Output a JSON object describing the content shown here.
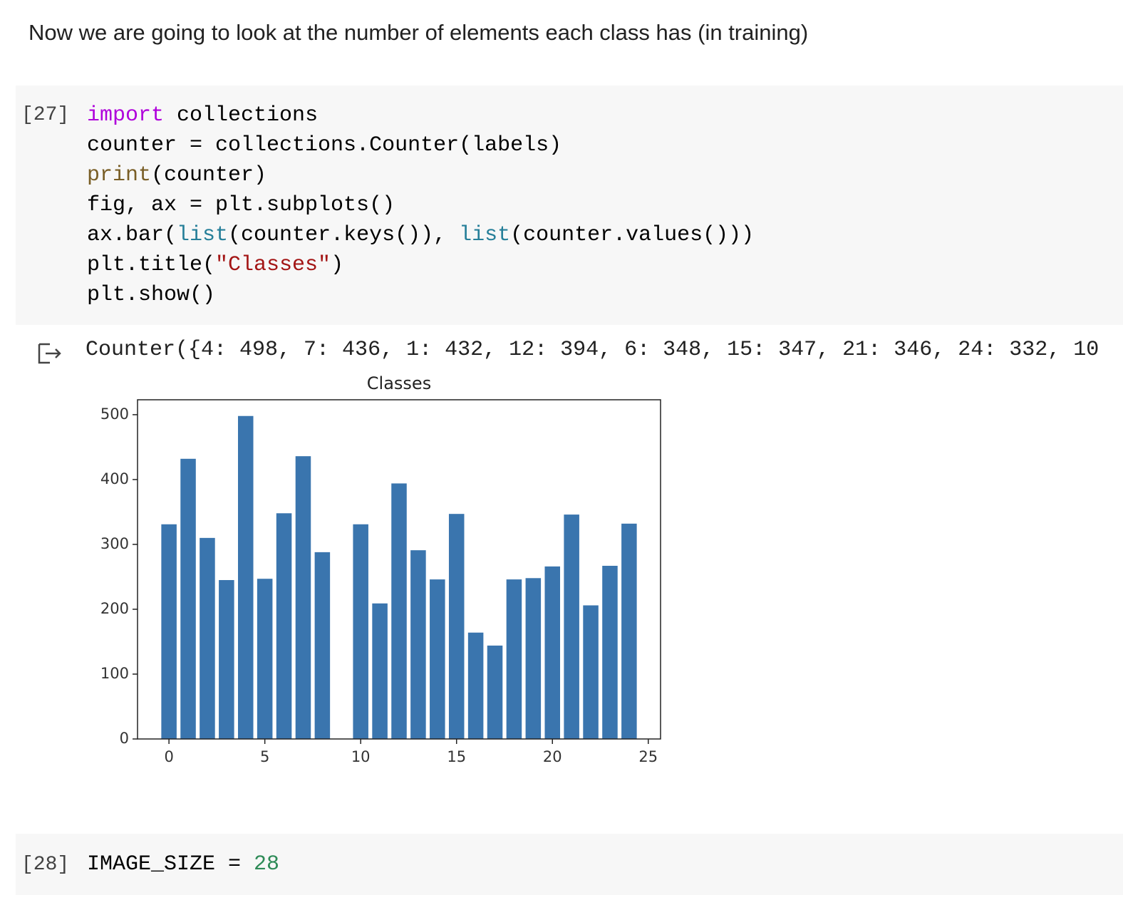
{
  "markdown": {
    "text": "Now we are going to look at the number of elements each class has (in training)"
  },
  "cells": [
    {
      "prompt": "[27]",
      "code": [
        [
          {
            "text": "import",
            "style": "keyword"
          },
          {
            "text": " collections"
          }
        ],
        [
          {
            "text": "counter = collections.Counter(labels)"
          }
        ],
        [
          {
            "text": "print",
            "style": "function"
          },
          {
            "text": "(counter)"
          }
        ],
        [
          {
            "text": "fig, ax = plt.subplots()"
          }
        ],
        [
          {
            "text": "ax.bar("
          },
          {
            "text": "list",
            "style": "builtin"
          },
          {
            "text": "(counter.keys()), "
          },
          {
            "text": "list",
            "style": "builtin"
          },
          {
            "text": "(counter.values()))"
          }
        ],
        [
          {
            "text": "plt.title("
          },
          {
            "text": "\"Classes\"",
            "style": "string"
          },
          {
            "text": ")"
          }
        ],
        [
          {
            "text": "plt.show()"
          }
        ]
      ],
      "output": "Counter({4: 498, 7: 436, 1: 432, 12: 394, 6: 348, 15: 347, 21: 346, 24: 332, 10"
    },
    {
      "prompt": "[28]",
      "code": [
        [
          {
            "text": "IMAGE_SIZE = "
          },
          {
            "text": "28",
            "style": "number"
          }
        ]
      ]
    }
  ],
  "chart_data": {
    "type": "bar",
    "title": "Classes",
    "x": [
      0,
      1,
      2,
      3,
      4,
      5,
      6,
      7,
      8,
      10,
      11,
      12,
      13,
      14,
      15,
      16,
      17,
      18,
      19,
      20,
      21,
      22,
      23,
      24
    ],
    "values": [
      331,
      432,
      310,
      245,
      498,
      247,
      348,
      436,
      288,
      331,
      209,
      394,
      291,
      246,
      347,
      164,
      144,
      246,
      248,
      266,
      346,
      206,
      267,
      332
    ],
    "color": "#3a75ae",
    "xlim": [
      -1.64,
      25.64
    ],
    "xticks": [
      0,
      5,
      10,
      15,
      20,
      25
    ],
    "ylim": [
      0,
      523
    ],
    "yticks": [
      0,
      100,
      200,
      300,
      400,
      500
    ]
  }
}
